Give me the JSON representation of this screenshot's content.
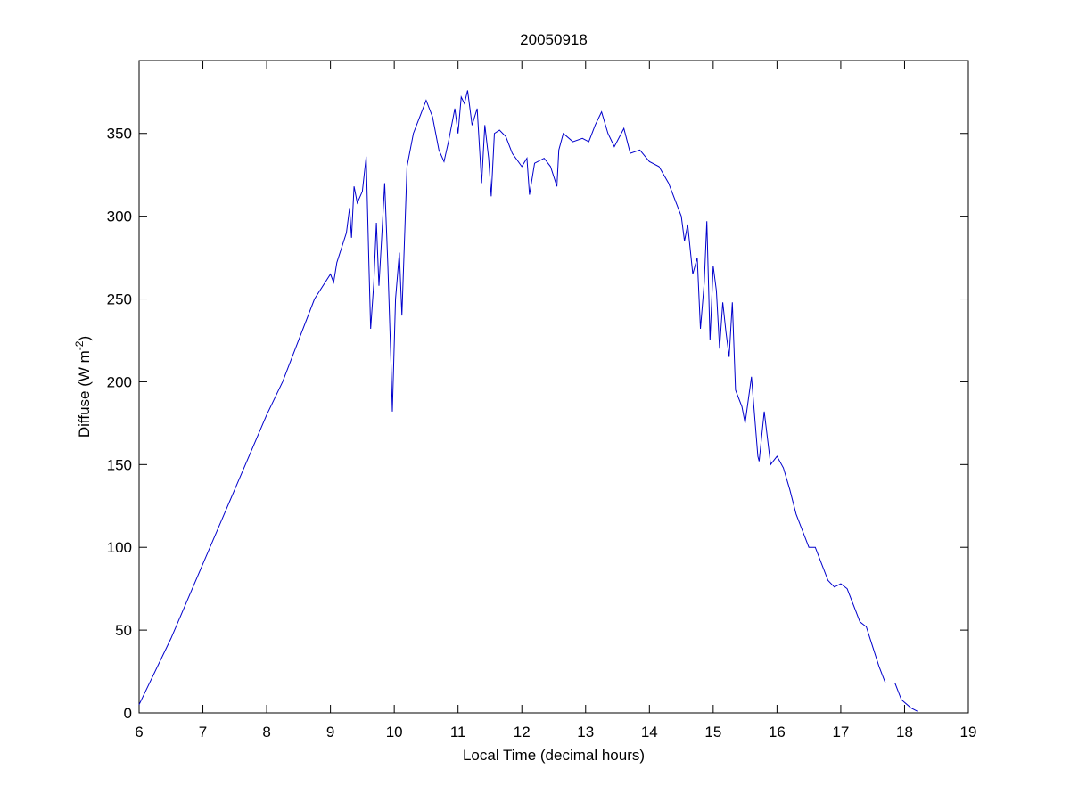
{
  "chart_data": {
    "type": "line",
    "title": "20050918",
    "x_label": "Local Time (decimal hours)",
    "y_label": [
      "Diffuse (W m",
      "-2",
      ")"
    ],
    "xlim": [
      6,
      19
    ],
    "ylim": [
      0,
      394
    ],
    "xticks": [
      6,
      7,
      8,
      9,
      10,
      11,
      12,
      13,
      14,
      15,
      16,
      17,
      18,
      19
    ],
    "yticks": [
      0,
      50,
      100,
      150,
      200,
      250,
      300,
      350
    ],
    "grid": false,
    "x": [
      6.0,
      6.5,
      7.0,
      7.5,
      8.0,
      8.25,
      8.5,
      8.75,
      9.0,
      9.05,
      9.1,
      9.25,
      9.3,
      9.33,
      9.37,
      9.42,
      9.5,
      9.56,
      9.6,
      9.63,
      9.68,
      9.72,
      9.76,
      9.8,
      9.85,
      9.9,
      9.95,
      9.97,
      10.02,
      10.08,
      10.12,
      10.2,
      10.3,
      10.4,
      10.5,
      10.6,
      10.7,
      10.78,
      10.85,
      10.95,
      11.0,
      11.05,
      11.1,
      11.15,
      11.22,
      11.3,
      11.37,
      11.42,
      11.48,
      11.52,
      11.57,
      11.65,
      11.75,
      11.85,
      12.0,
      12.08,
      12.12,
      12.2,
      12.35,
      12.45,
      12.55,
      12.58,
      12.65,
      12.8,
      12.95,
      13.05,
      13.15,
      13.25,
      13.35,
      13.45,
      13.6,
      13.7,
      13.85,
      14.0,
      14.15,
      14.3,
      14.4,
      14.5,
      14.55,
      14.6,
      14.68,
      14.75,
      14.8,
      14.86,
      14.9,
      14.95,
      15.0,
      15.05,
      15.1,
      15.15,
      15.2,
      15.25,
      15.3,
      15.35,
      15.45,
      15.5,
      15.6,
      15.7,
      15.72,
      15.8,
      15.9,
      16.0,
      16.1,
      16.2,
      16.3,
      16.4,
      16.5,
      16.6,
      16.7,
      16.8,
      16.9,
      17.0,
      17.1,
      17.2,
      17.3,
      17.4,
      17.5,
      17.6,
      17.7,
      17.85,
      17.95,
      18.1,
      18.2
    ],
    "series": [
      {
        "color": "#0000cc",
        "values": [
          5,
          45,
          90,
          135,
          180,
          200,
          225,
          250,
          265,
          260,
          272,
          290,
          305,
          287,
          318,
          308,
          315,
          336,
          275,
          232,
          260,
          296,
          258,
          285,
          320,
          270,
          210,
          182,
          250,
          278,
          240,
          330,
          350,
          360,
          370,
          360,
          340,
          333,
          345,
          365,
          350,
          372,
          368,
          376,
          355,
          365,
          320,
          355,
          335,
          312,
          350,
          352,
          348,
          338,
          330,
          335,
          313,
          332,
          335,
          330,
          318,
          340,
          350,
          345,
          347,
          345,
          355,
          363,
          350,
          342,
          353,
          338,
          340,
          333,
          330,
          320,
          310,
          300,
          285,
          295,
          265,
          275,
          232,
          260,
          297,
          225,
          270,
          255,
          220,
          248,
          230,
          215,
          248,
          195,
          185,
          175,
          203,
          155,
          152,
          182,
          150,
          155,
          148,
          135,
          120,
          110,
          100,
          100,
          90,
          80,
          76,
          78,
          75,
          65,
          55,
          52,
          40,
          28,
          18,
          18,
          8,
          3,
          1
        ]
      }
    ]
  }
}
